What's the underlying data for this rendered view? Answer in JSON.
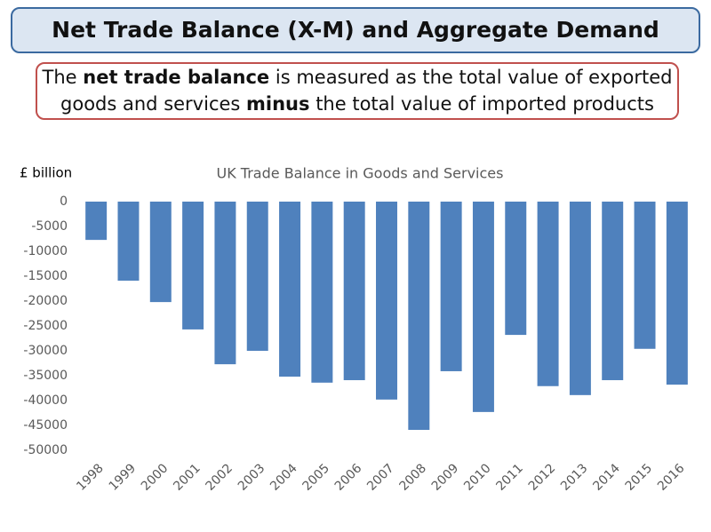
{
  "title": "Net Trade Balance (X-M) and Aggregate Demand",
  "definition": [
    [
      {
        "text": "The ",
        "bold": false
      },
      {
        "text": "net trade balance",
        "bold": true
      },
      {
        "text": " is measured as the total value of exported",
        "bold": false
      }
    ],
    [
      {
        "text": "goods and services ",
        "bold": false
      },
      {
        "text": "minus",
        "bold": true
      },
      {
        "text": " the total value of imported products",
        "bold": false
      }
    ]
  ],
  "chart_data": {
    "type": "bar",
    "title": "UK Trade Balance in Goods and Services",
    "y_label": "£ billion",
    "categories": [
      "1998",
      "1999",
      "2000",
      "2001",
      "2002",
      "2003",
      "2004",
      "2005",
      "2006",
      "2007",
      "2008",
      "2009",
      "2010",
      "2011",
      "2012",
      "2013",
      "2014",
      "2015",
      "2016"
    ],
    "values": [
      -7700,
      -15900,
      -20200,
      -25700,
      -32700,
      -30000,
      -35200,
      -36400,
      -35900,
      -39800,
      -45900,
      -34100,
      -42300,
      -26800,
      -37100,
      -38900,
      -35900,
      -29600,
      -36800
    ],
    "color": "#4f81bd",
    "ylim": [
      -50000,
      0
    ],
    "yticks": [
      0,
      -5000,
      -10000,
      -15000,
      -20000,
      -25000,
      -30000,
      -35000,
      -40000,
      -45000,
      -50000
    ]
  }
}
